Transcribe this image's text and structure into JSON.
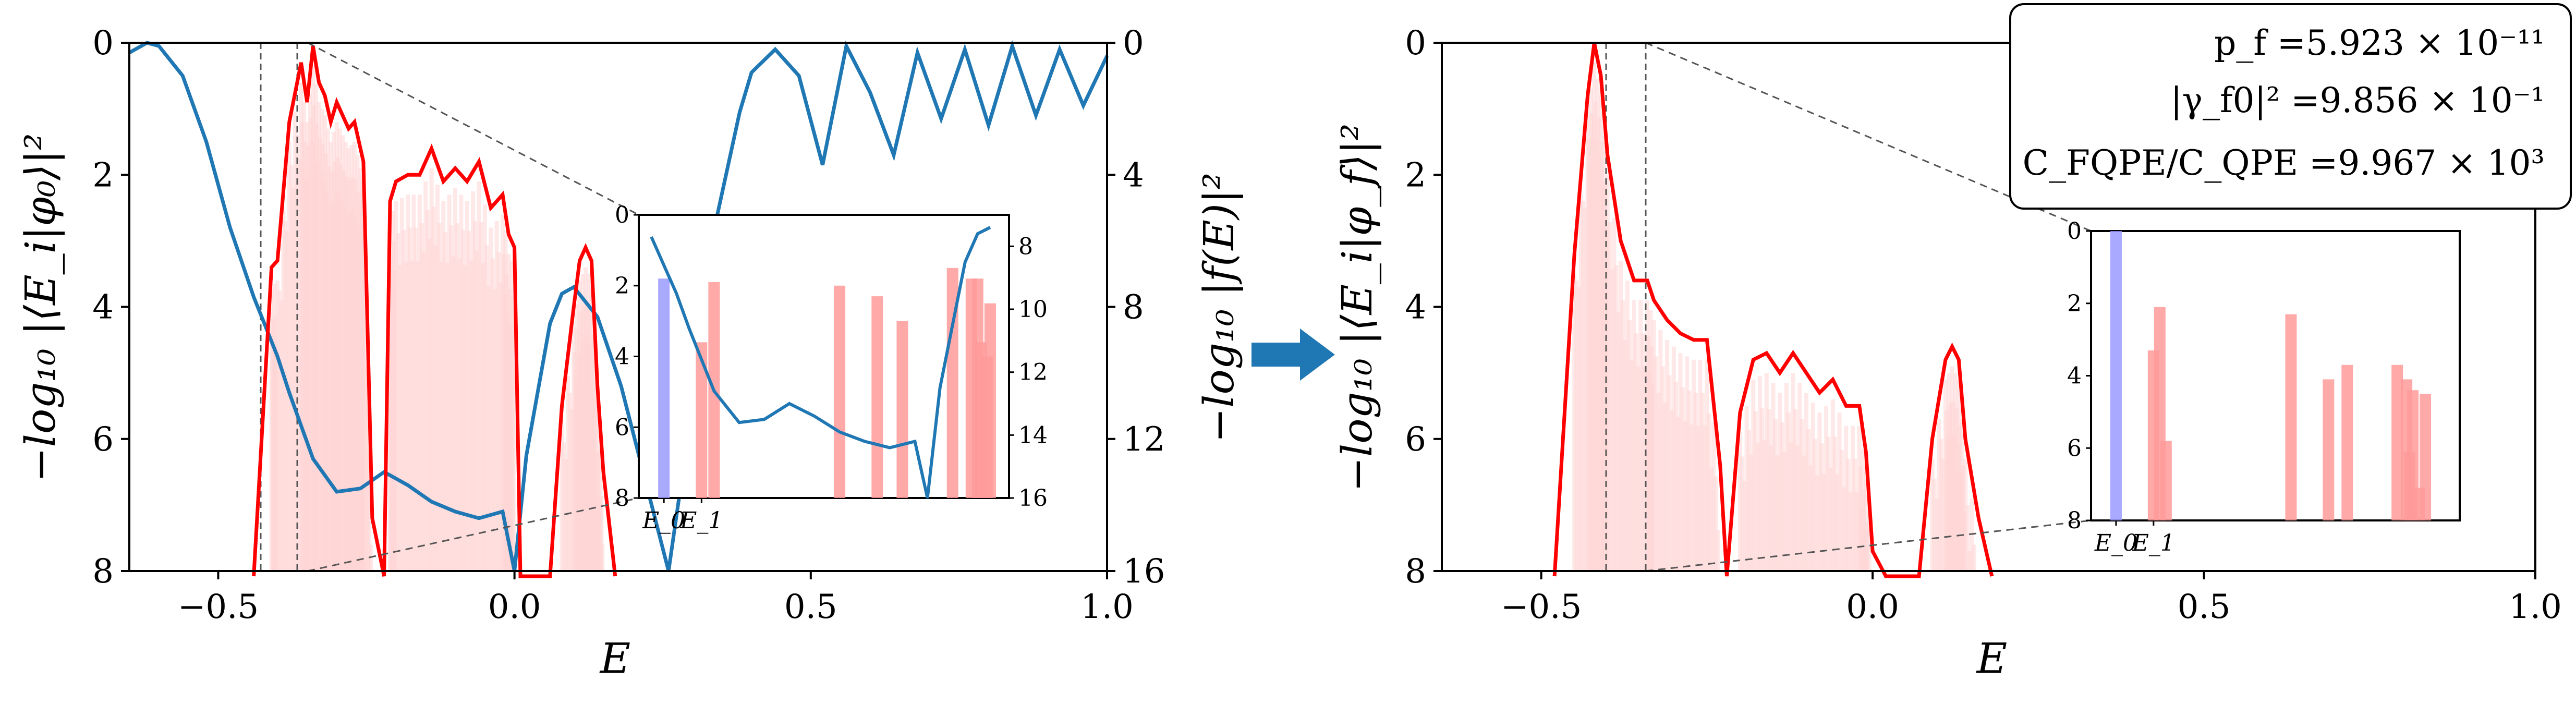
{
  "figure": {
    "arrow_color": "#1f77b4",
    "colors": {
      "red": "#ff0000",
      "blue": "#1f77b4",
      "light_red": "#ffd6d6",
      "bar_red": "#ff9a9a",
      "bar_blue": "#9a9aff",
      "dash": "#555555"
    }
  },
  "chart_data": [
    {
      "type": "line",
      "panel": "left",
      "xlabel": "E",
      "ylabel": "−log₁₀ |⟨E_i|φ₀⟩|²",
      "ylabel2": "−log₁₀ |f(E)|²",
      "xlim": [
        -0.65,
        1.0
      ],
      "ylim": [
        0,
        8
      ],
      "ylim2": [
        0,
        16
      ],
      "y_inverted": true,
      "xticks": [
        "−0.5",
        "0.0",
        "0.5",
        "1.0"
      ],
      "yticks": [
        "0",
        "2",
        "4",
        "6",
        "8"
      ],
      "yticks2": [
        "0",
        "4",
        "8",
        "12",
        "16"
      ],
      "vlines": [
        -0.42,
        -0.36
      ],
      "series": [
        {
          "role": "overlap_envelope",
          "color": "#ff0000",
          "x": [
            -0.44,
            -0.41,
            -0.4,
            -0.38,
            -0.36,
            -0.35,
            -0.34,
            -0.33,
            -0.32,
            -0.31,
            -0.3,
            -0.29,
            -0.28,
            -0.27,
            -0.26,
            -0.255,
            -0.24,
            -0.22,
            -0.21,
            -0.2,
            -0.18,
            -0.16,
            -0.14,
            -0.12,
            -0.1,
            -0.08,
            -0.06,
            -0.04,
            -0.02,
            -0.01,
            0.0,
            0.01,
            0.06,
            0.08,
            0.1,
            0.11,
            0.12,
            0.13,
            0.14,
            0.15,
            0.17
          ],
          "y": [
            8.2,
            3.4,
            3.3,
            1.2,
            0.3,
            0.9,
            0.05,
            0.6,
            0.8,
            1.2,
            0.9,
            1.1,
            1.3,
            1.2,
            1.6,
            1.8,
            7.2,
            8.2,
            2.4,
            2.1,
            2.0,
            2.0,
            1.6,
            2.1,
            1.9,
            2.1,
            1.8,
            2.5,
            2.3,
            2.9,
            3.1,
            8.3,
            8.3,
            5.5,
            4.0,
            3.3,
            3.1,
            3.3,
            5.2,
            6.5,
            8.3
          ]
        },
        {
          "role": "filter_f",
          "color": "#1f77b4",
          "axis": "right",
          "x": [
            -0.65,
            -0.62,
            -0.6,
            -0.56,
            -0.52,
            -0.48,
            -0.44,
            -0.42,
            -0.4,
            -0.38,
            -0.36,
            -0.34,
            -0.3,
            -0.26,
            -0.22,
            -0.18,
            -0.14,
            -0.1,
            -0.06,
            -0.02,
            0.0,
            0.02,
            0.06,
            0.08,
            0.1,
            0.14,
            0.18,
            0.22,
            0.26,
            0.3,
            0.34,
            0.38,
            0.4,
            0.44,
            0.48,
            0.52,
            0.56,
            0.6,
            0.64,
            0.68,
            0.72,
            0.76,
            0.8,
            0.84,
            0.88,
            0.92,
            0.96,
            1.0
          ],
          "y": [
            0.3,
            0.0,
            0.1,
            1.0,
            3.0,
            5.6,
            7.7,
            8.6,
            9.5,
            10.6,
            11.6,
            12.6,
            13.6,
            13.5,
            13.0,
            13.4,
            13.9,
            14.2,
            14.4,
            14.2,
            16.0,
            12.5,
            8.5,
            7.6,
            7.4,
            8.3,
            10.4,
            13.2,
            16.0,
            11.0,
            5.4,
            2.1,
            0.9,
            0.2,
            1.0,
            3.7,
            0.1,
            1.5,
            3.4,
            0.3,
            2.3,
            0.2,
            2.5,
            0.1,
            2.2,
            0.2,
            1.9,
            0.4
          ]
        }
      ]
    },
    {
      "type": "bar",
      "panel": "left-inset",
      "xticks": [
        "E_0",
        "E_1"
      ],
      "yticks": [
        "0",
        "2",
        "4",
        "6",
        "8"
      ],
      "yticks2": [
        "8",
        "10",
        "12",
        "14",
        "16"
      ],
      "ylim": [
        0,
        8
      ],
      "ylim2": [
        7,
        16
      ],
      "bars": [
        {
          "x": -0.42,
          "depth": 1.8,
          "color": "blue"
        },
        {
          "x": -0.36,
          "depth": 3.6,
          "color": "red"
        },
        {
          "x": -0.34,
          "depth": 1.9,
          "color": "red"
        },
        {
          "x": -0.14,
          "depth": 2.0,
          "color": "red"
        },
        {
          "x": -0.08,
          "depth": 2.3,
          "color": "red"
        },
        {
          "x": -0.04,
          "depth": 3.0,
          "color": "red"
        },
        {
          "x": 0.04,
          "depth": 1.5,
          "color": "red"
        },
        {
          "x": 0.07,
          "depth": 1.8,
          "color": "red"
        },
        {
          "x": 0.08,
          "depth": 1.8,
          "color": "red"
        },
        {
          "x": 0.085,
          "depth": 3.6,
          "color": "red"
        },
        {
          "x": 0.095,
          "depth": 4.0,
          "color": "red"
        },
        {
          "x": 0.1,
          "depth": 2.5,
          "color": "red"
        }
      ]
    },
    {
      "type": "line",
      "panel": "right",
      "xlabel": "E",
      "ylabel": "−log₁₀ |⟨E_i|φ_f⟩|²",
      "xlim": [
        -0.65,
        1.0
      ],
      "ylim": [
        0,
        8
      ],
      "y_inverted": true,
      "xticks": [
        "−0.5",
        "0.0",
        "0.5",
        "1.0"
      ],
      "yticks": [
        "0",
        "2",
        "4",
        "6",
        "8"
      ],
      "vlines": [
        -0.42,
        -0.36
      ],
      "series": [
        {
          "role": "overlap_envelope",
          "color": "#ff0000",
          "x": [
            -0.48,
            -0.45,
            -0.43,
            -0.42,
            -0.41,
            -0.4,
            -0.38,
            -0.36,
            -0.34,
            -0.33,
            -0.31,
            -0.29,
            -0.27,
            -0.25,
            -0.23,
            -0.22,
            -0.2,
            -0.18,
            -0.16,
            -0.14,
            -0.12,
            -0.1,
            -0.08,
            -0.06,
            -0.04,
            -0.02,
            -0.01,
            0.0,
            0.02,
            0.07,
            0.09,
            0.11,
            0.12,
            0.13,
            0.14,
            0.16,
            0.18
          ],
          "y": [
            8.3,
            3.2,
            0.8,
            0.0,
            0.5,
            1.7,
            3.0,
            3.6,
            3.6,
            3.9,
            4.2,
            4.4,
            4.5,
            4.5,
            6.4,
            8.3,
            5.6,
            4.8,
            4.7,
            5.0,
            4.7,
            5.0,
            5.3,
            5.1,
            5.5,
            5.5,
            6.2,
            7.7,
            8.3,
            8.3,
            6.0,
            4.8,
            4.6,
            4.8,
            6.0,
            7.2,
            8.3
          ]
        }
      ]
    },
    {
      "type": "bar",
      "panel": "right-inset",
      "xticks": [
        "E_0",
        "E_1"
      ],
      "yticks": [
        "0",
        "2",
        "4",
        "6",
        "8"
      ],
      "ylim": [
        0,
        8
      ],
      "bars": [
        {
          "x": -0.42,
          "depth": 0.0,
          "color": "blue"
        },
        {
          "x": -0.36,
          "depth": 3.3,
          "color": "red"
        },
        {
          "x": -0.35,
          "depth": 2.1,
          "color": "red"
        },
        {
          "x": -0.34,
          "depth": 5.8,
          "color": "red"
        },
        {
          "x": -0.14,
          "depth": 2.3,
          "color": "red"
        },
        {
          "x": -0.08,
          "depth": 4.1,
          "color": "red"
        },
        {
          "x": -0.05,
          "depth": 3.7,
          "color": "red"
        },
        {
          "x": 0.03,
          "depth": 3.7,
          "color": "red"
        },
        {
          "x": 0.045,
          "depth": 4.1,
          "color": "red"
        },
        {
          "x": 0.05,
          "depth": 6.1,
          "color": "red"
        },
        {
          "x": 0.055,
          "depth": 4.4,
          "color": "red"
        },
        {
          "x": 0.065,
          "depth": 7.1,
          "color": "red"
        },
        {
          "x": 0.075,
          "depth": 4.5,
          "color": "red"
        }
      ]
    }
  ],
  "annotation_box": {
    "lines": [
      "p_f =5.923 × 10⁻¹¹",
      "|γ_f0|² =9.856 × 10⁻¹",
      "C_FQPE/C_QPE =9.967 × 10³"
    ]
  }
}
